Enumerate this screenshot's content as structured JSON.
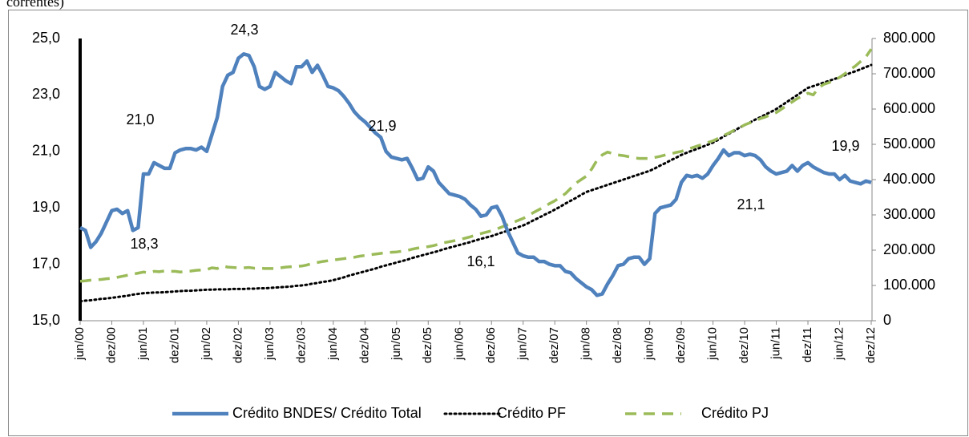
{
  "chart_data": {
    "type": "line",
    "title": "correntes)",
    "categories": [
      "jun/00",
      null,
      null,
      null,
      null,
      null,
      "dez/00",
      null,
      null,
      null,
      null,
      null,
      "jun/01",
      null,
      null,
      null,
      null,
      null,
      "dez/01",
      null,
      null,
      null,
      null,
      null,
      "jun/02",
      null,
      null,
      null,
      null,
      null,
      "dez/02",
      null,
      null,
      null,
      null,
      null,
      "jun/03",
      null,
      null,
      null,
      null,
      null,
      "dez/03",
      null,
      null,
      null,
      null,
      null,
      "jun/04",
      null,
      null,
      null,
      null,
      null,
      "dez/04",
      null,
      null,
      null,
      null,
      null,
      "jun/05",
      null,
      null,
      null,
      null,
      null,
      "dez/05",
      null,
      null,
      null,
      null,
      null,
      "jun/06",
      null,
      null,
      null,
      null,
      null,
      "dez/06",
      null,
      null,
      null,
      null,
      null,
      "jun/07",
      null,
      null,
      null,
      null,
      null,
      "dez/07",
      null,
      null,
      null,
      null,
      null,
      "jun/08",
      null,
      null,
      null,
      null,
      null,
      "dez/08",
      null,
      null,
      null,
      null,
      null,
      "jun/09",
      null,
      null,
      null,
      null,
      null,
      "dez/09",
      null,
      null,
      null,
      null,
      null,
      "jun/10",
      null,
      null,
      null,
      null,
      null,
      "dez/10",
      null,
      null,
      null,
      null,
      null,
      "jun/11",
      null,
      null,
      null,
      null,
      null,
      "dez/11",
      null,
      null,
      null,
      null,
      null,
      "jun/12",
      null,
      null,
      null,
      null,
      null,
      "dez/12"
    ],
    "series": [
      {
        "name": "Crédito BNDES/ Crédito Total",
        "color": "#4f81bd",
        "style": "solid",
        "axis": "y",
        "values": [
          18.3,
          18.2,
          17.6,
          17.8,
          18.1,
          18.5,
          18.9,
          18.95,
          18.8,
          18.9,
          18.2,
          18.3,
          20.2,
          20.2,
          20.6,
          20.5,
          20.4,
          20.4,
          20.95,
          21.05,
          21.1,
          21.1,
          21.05,
          21.15,
          21.0,
          21.6,
          22.2,
          23.3,
          23.7,
          23.8,
          24.3,
          24.45,
          24.4,
          24.0,
          23.3,
          23.2,
          23.3,
          23.8,
          23.65,
          23.5,
          23.4,
          24.0,
          24.0,
          24.2,
          23.8,
          24.05,
          23.7,
          23.3,
          23.25,
          23.15,
          22.95,
          22.7,
          22.4,
          22.2,
          22.05,
          21.85,
          21.65,
          21.5,
          21.0,
          20.8,
          20.75,
          20.7,
          20.75,
          20.4,
          20.0,
          20.05,
          20.45,
          20.3,
          19.9,
          19.7,
          19.5,
          19.45,
          19.4,
          19.3,
          19.1,
          18.95,
          18.7,
          18.75,
          19.0,
          19.05,
          18.7,
          18.2,
          17.8,
          17.4,
          17.3,
          17.25,
          17.25,
          17.1,
          17.1,
          17.0,
          16.95,
          16.95,
          16.75,
          16.7,
          16.5,
          16.35,
          16.2,
          16.1,
          15.9,
          15.95,
          16.3,
          16.6,
          16.95,
          17.0,
          17.2,
          17.25,
          17.25,
          17.0,
          17.2,
          18.8,
          19.0,
          19.05,
          19.1,
          19.3,
          19.9,
          20.15,
          20.1,
          20.15,
          20.05,
          20.2,
          20.5,
          20.75,
          21.05,
          20.85,
          20.95,
          20.95,
          20.85,
          20.9,
          20.85,
          20.7,
          20.45,
          20.3,
          20.2,
          20.25,
          20.3,
          20.5,
          20.3,
          20.5,
          20.6,
          20.45,
          20.35,
          20.25,
          20.2,
          20.2,
          20.0,
          20.15,
          19.95,
          19.9,
          19.85,
          19.95,
          19.9
        ]
      },
      {
        "name": "Crédito PF",
        "color": "#000000",
        "style": "dotted",
        "axis": "y2",
        "values": [
          55000,
          57000,
          58000,
          60000,
          62000,
          63000,
          65000,
          67000,
          69000,
          71000,
          74000,
          76000,
          78000,
          79000,
          80000,
          80000,
          81000,
          82000,
          83000,
          84000,
          85000,
          85000,
          86000,
          87000,
          88000,
          88000,
          89000,
          89000,
          89000,
          90000,
          90000,
          90000,
          91000,
          91000,
          92000,
          92000,
          93000,
          94000,
          95000,
          96000,
          97000,
          99000,
          100000,
          102000,
          105000,
          107000,
          110000,
          112000,
          115000,
          119000,
          123000,
          128000,
          132000,
          136000,
          140000,
          144000,
          148000,
          153000,
          157000,
          161000,
          165000,
          169000,
          173000,
          178000,
          182000,
          186000,
          190000,
          194000,
          198000,
          203000,
          207000,
          211000,
          215000,
          219000,
          223000,
          228000,
          232000,
          236000,
          240000,
          245000,
          250000,
          255000,
          260000,
          265000,
          270000,
          277000,
          285000,
          292000,
          300000,
          307000,
          315000,
          323000,
          332000,
          340000,
          348000,
          357000,
          365000,
          370000,
          375000,
          380000,
          385000,
          390000,
          395000,
          400000,
          405000,
          410000,
          415000,
          420000,
          425000,
          432000,
          440000,
          447000,
          455000,
          462000,
          470000,
          476000,
          482000,
          487000,
          493000,
          499000,
          505000,
          513000,
          522000,
          530000,
          538000,
          547000,
          555000,
          562000,
          570000,
          577000,
          585000,
          592000,
          600000,
          610000,
          620000,
          630000,
          640000,
          650000,
          660000,
          665000,
          670000,
          675000,
          680000,
          685000,
          690000,
          696000,
          702000,
          707000,
          713000,
          719000,
          725000
        ]
      },
      {
        "name": "Crédito PJ",
        "color": "#9bbb59",
        "style": "dashed",
        "axis": "y2",
        "values": [
          112000,
          113000,
          115000,
          116000,
          117000,
          119000,
          120000,
          123000,
          126000,
          129000,
          132000,
          135000,
          138000,
          136000,
          140000,
          139000,
          141000,
          140000,
          140000,
          138000,
          140000,
          141000,
          143000,
          144000,
          145000,
          150000,
          148000,
          155000,
          152000,
          151000,
          150000,
          150000,
          151000,
          149000,
          149000,
          148000,
          148000,
          148000,
          150000,
          152000,
          153000,
          154000,
          155000,
          158000,
          162000,
          165000,
          168000,
          170000,
          172000,
          174000,
          176000,
          178000,
          180000,
          183000,
          185000,
          187000,
          189000,
          191000,
          193000,
          194000,
          195000,
          197000,
          199000,
          203000,
          206000,
          208000,
          210000,
          213000,
          217000,
          221000,
          224000,
          227000,
          230000,
          234000,
          238000,
          243000,
          247000,
          251000,
          255000,
          260000,
          266000,
          272000,
          278000,
          284000,
          290000,
          298000,
          307000,
          315000,
          323000,
          332000,
          340000,
          350000,
          360000,
          375000,
          390000,
          400000,
          410000,
          430000,
          455000,
          470000,
          478000,
          474000,
          470000,
          468000,
          465000,
          462000,
          460000,
          460000,
          460000,
          463000,
          466000,
          470000,
          473000,
          477000,
          480000,
          485000,
          490000,
          495000,
          500000,
          505000,
          510000,
          517000,
          525000,
          532000,
          540000,
          547000,
          555000,
          561000,
          567000,
          573000,
          578000,
          584000,
          590000,
          600000,
          610000,
          620000,
          630000,
          637000,
          645000,
          640000,
          660000,
          670000,
          675000,
          682000,
          690000,
          700000,
          712000,
          722000,
          735000,
          748000,
          770000
        ]
      }
    ],
    "ylim": [
      15,
      25
    ],
    "yticks": [
      {
        "value": 15,
        "label": "15,0"
      },
      {
        "value": 17,
        "label": "17,0"
      },
      {
        "value": 19,
        "label": "19,0"
      },
      {
        "value": 21,
        "label": "21,0"
      },
      {
        "value": 23,
        "label": "23,0"
      },
      {
        "value": 25,
        "label": "25,0"
      }
    ],
    "y2lim": [
      0,
      800000
    ],
    "y2ticks": [
      0,
      {
        "value": 100000,
        "label": "100.000"
      },
      {
        "value": 200000,
        "label": "200.000"
      },
      {
        "value": 300000,
        "label": "300.000"
      },
      {
        "value": 400000,
        "label": "400.000"
      },
      {
        "value": 500000,
        "label": "500.000"
      },
      {
        "value": 600000,
        "label": "600.000"
      },
      {
        "value": 700000,
        "label": "700.000"
      },
      {
        "value": 800000,
        "label": "800.000"
      }
    ],
    "annotations": [
      "24,3",
      "21,0",
      "18,3",
      "21,9",
      "16,1",
      "21,1",
      "19,9"
    ],
    "legend": "bottom"
  }
}
